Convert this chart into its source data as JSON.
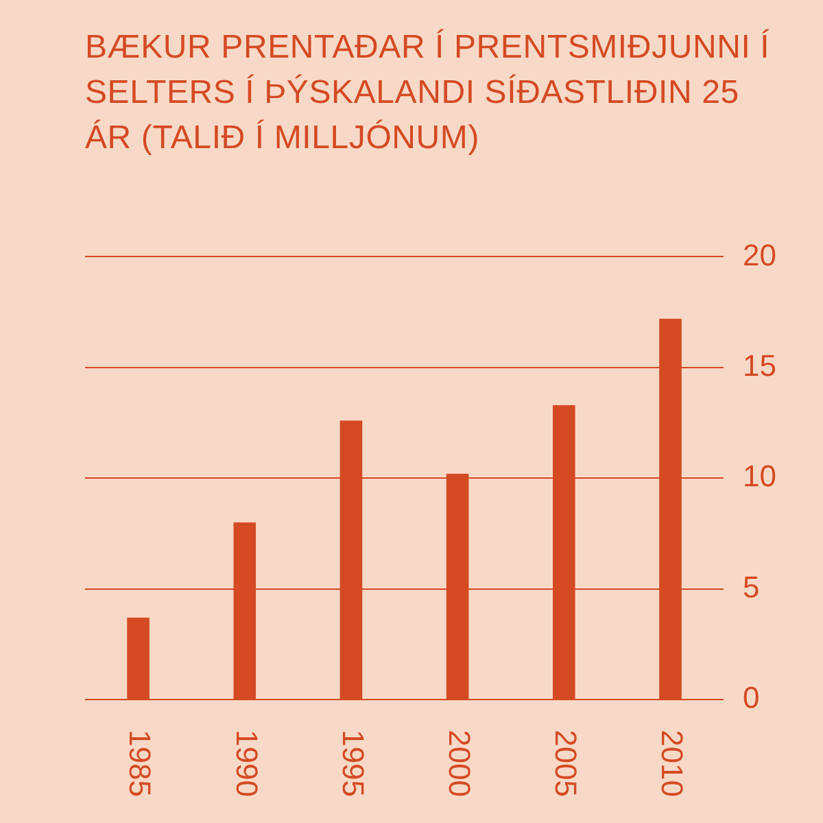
{
  "chart_data": {
    "type": "bar",
    "title": "BÆKUR PRENTAÐAR Í PRENTSMIÐJUNNI Í SELTERS Í ÞÝSKALANDI SÍÐASTLIÐIN 25 ÁR (TALIÐ Í MILLJÓNUM)",
    "categories": [
      "1985",
      "1990",
      "1995",
      "2000",
      "2005",
      "2010"
    ],
    "values": [
      3.7,
      8,
      12.6,
      10.2,
      13.3,
      17.2
    ],
    "color": "#d44a22",
    "ylim": [
      0,
      20
    ],
    "yticks": [
      0,
      5,
      10,
      15,
      20
    ],
    "grid": "y"
  }
}
